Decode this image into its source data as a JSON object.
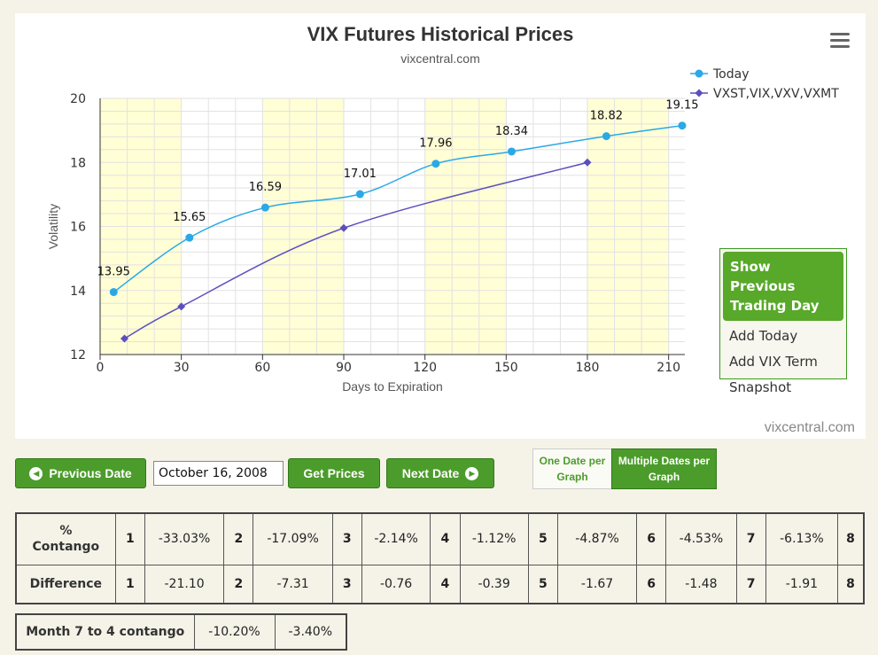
{
  "chart_data": {
    "type": "line",
    "title": "VIX Futures Historical Prices",
    "subtitle": "vixcentral.com",
    "xlabel": "Days to Expiration",
    "ylabel": "Volatility",
    "xlim": [
      0,
      216
    ],
    "ylim": [
      12,
      20
    ],
    "x_ticks": [
      "0",
      "30",
      "60",
      "90",
      "120",
      "150",
      "180",
      "210"
    ],
    "y_ticks": [
      "12",
      "14",
      "16",
      "18",
      "20"
    ],
    "legend": "top-right",
    "series": [
      {
        "name": "Today",
        "color": "#2aa9e6",
        "marker": "circle",
        "x": [
          5,
          33,
          61,
          96,
          124,
          152,
          187,
          215
        ],
        "y": [
          13.95,
          15.65,
          16.59,
          17.01,
          17.96,
          18.34,
          18.82,
          19.15
        ],
        "labels": [
          "13.95",
          "15.65",
          "16.59",
          "17.01",
          "17.96",
          "18.34",
          "18.82",
          "19.15"
        ]
      },
      {
        "name": "VXST,VIX,VXV,VXMT",
        "color": "#5b4fbf",
        "marker": "diamond",
        "x": [
          9,
          30,
          90,
          180
        ],
        "y": [
          12.5,
          13.5,
          15.95,
          18.0
        ]
      }
    ]
  },
  "menu": {
    "icon": "hamburger-icon",
    "items": [
      "Show Previous Trading Day",
      "Add Today",
      "Add VIX Term",
      "Snapshot"
    ]
  },
  "watermark": "vixcentral.com",
  "controls": {
    "prev_label": "Previous Date",
    "date_value": "October 16, 2008",
    "get_label": "Get Prices",
    "next_label": "Next Date",
    "one_date": "One Date per Graph",
    "multi_dates": "Multiple Dates per Graph"
  },
  "contango_table": {
    "row1_label": "% Contango",
    "row2_label": "Difference",
    "months": [
      "1",
      "2",
      "3",
      "4",
      "5",
      "6",
      "7",
      "8"
    ],
    "contango": [
      "-33.03%",
      "-17.09%",
      "-2.14%",
      "-1.12%",
      "-4.87%",
      "-4.53%",
      "-6.13%"
    ],
    "difference": [
      "-21.10",
      "-7.31",
      "-0.76",
      "-0.39",
      "-1.67",
      "-1.48",
      "-1.91"
    ]
  },
  "month74": {
    "label": "Month 7 to 4 contango",
    "values": [
      "-10.20%",
      "-3.40%"
    ]
  },
  "colors": {
    "button_green": "#4c9c2c",
    "band_yellow": "#fffed5"
  }
}
